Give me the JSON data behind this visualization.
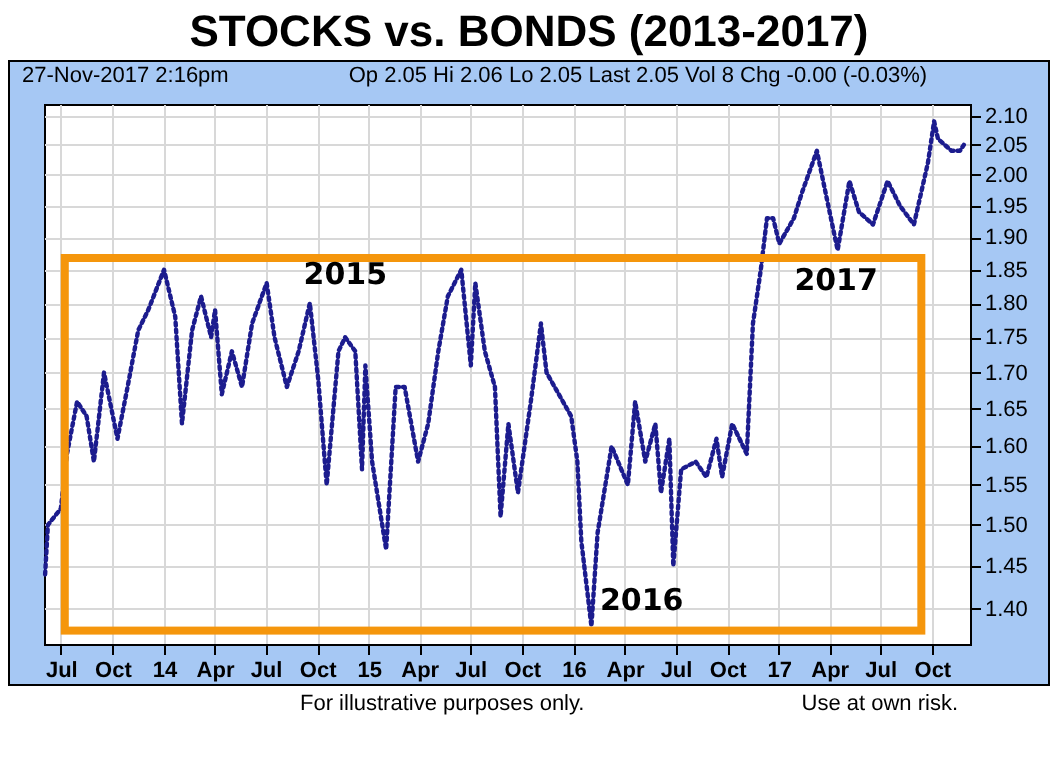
{
  "chart_data": {
    "type": "line",
    "title": "STOCKS vs. BONDS (2013-2017)",
    "subtitle": "27-Nov-2017 2:16pm",
    "annotations": [
      "Op 2.05  Hi 2.06  Lo 2.05  Last 2.05  Vol 8  Chg -0.00 (-0.03%)",
      "2015",
      "2016",
      "2017",
      "For illustrative purposes only.",
      "Use at own risk."
    ],
    "x": [
      "2013-06-03",
      "2013-06-08",
      "2013-07-01",
      "2013-07-12",
      "2013-07-30",
      "2013-08-16",
      "2013-08-29",
      "2013-09-16",
      "2013-10-10",
      "2013-10-28",
      "2013-11-16",
      "2013-12-04",
      "2014-01-01",
      "2014-01-21",
      "2014-02-02",
      "2014-02-20",
      "2014-03-08",
      "2014-03-26",
      "2014-04-02",
      "2014-04-14",
      "2014-05-02",
      "2014-05-20",
      "2014-06-07",
      "2014-07-03",
      "2014-07-17",
      "2014-08-08",
      "2014-08-29",
      "2014-09-18",
      "2014-10-03",
      "2014-10-18",
      "2014-11-08",
      "2014-11-20",
      "2014-12-08",
      "2014-12-20",
      "2014-12-26",
      "2015-01-07",
      "2015-02-01",
      "2015-02-18",
      "2015-03-06",
      "2015-03-30",
      "2015-04-17",
      "2015-05-05",
      "2015-05-22",
      "2015-06-15",
      "2015-07-02",
      "2015-07-10",
      "2015-07-27",
      "2015-08-14",
      "2015-08-24",
      "2015-09-07",
      "2015-09-24",
      "2015-10-17",
      "2015-11-04",
      "2015-11-14",
      "2015-12-28",
      "2016-01-08",
      "2016-01-15",
      "2016-02-02",
      "2016-02-13",
      "2016-03-09",
      "2016-04-07",
      "2016-04-20",
      "2016-05-08",
      "2016-05-26",
      "2016-06-05",
      "2016-06-20",
      "2016-06-27",
      "2016-07-11",
      "2016-08-06",
      "2016-08-25",
      "2016-09-12",
      "2016-09-22",
      "2016-10-10",
      "2016-11-05",
      "2016-11-16",
      "2016-11-30",
      "2016-12-11",
      "2016-12-22",
      "2017-01-02",
      "2017-01-28",
      "2017-02-11",
      "2017-03-10",
      "2017-03-28",
      "2017-04-16",
      "2017-05-07",
      "2017-05-24",
      "2017-06-18",
      "2017-07-14",
      "2017-08-05",
      "2017-08-30",
      "2017-09-24",
      "2017-10-05",
      "2017-10-12",
      "2017-11-05",
      "2017-11-20",
      "2017-11-27"
    ],
    "series": [
      {
        "color": "#1c1c8e",
        "values": [
          1.44,
          1.5,
          1.52,
          1.59,
          1.66,
          1.64,
          1.58,
          1.7,
          1.61,
          1.68,
          1.76,
          1.79,
          1.85,
          1.78,
          1.63,
          1.76,
          1.81,
          1.75,
          1.79,
          1.67,
          1.73,
          1.68,
          1.77,
          1.83,
          1.75,
          1.68,
          1.73,
          1.8,
          1.69,
          1.55,
          1.73,
          1.75,
          1.73,
          1.57,
          1.71,
          1.58,
          1.47,
          1.68,
          1.68,
          1.58,
          1.63,
          1.73,
          1.81,
          1.85,
          1.71,
          1.83,
          1.73,
          1.68,
          1.51,
          1.63,
          1.54,
          1.66,
          1.77,
          1.7,
          1.64,
          1.58,
          1.48,
          1.38,
          1.49,
          1.6,
          1.55,
          1.66,
          1.58,
          1.63,
          1.54,
          1.61,
          1.45,
          1.57,
          1.58,
          1.56,
          1.61,
          1.56,
          1.63,
          1.59,
          1.77,
          1.85,
          1.93,
          1.93,
          1.89,
          1.93,
          1.97,
          2.04,
          1.96,
          1.88,
          1.99,
          1.94,
          1.92,
          1.99,
          1.95,
          1.92,
          2.02,
          2.09,
          2.06,
          2.04,
          2.04,
          2.05
        ]
      }
    ],
    "xlim": [
      "2013-06-01",
      "2017-12-08"
    ],
    "xticks": [
      {
        "value": "2013-07-01",
        "label": "Jul"
      },
      {
        "value": "2013-10-01",
        "label": "Oct"
      },
      {
        "value": "2014-01-01",
        "label": "14"
      },
      {
        "value": "2014-04-01",
        "label": "Apr"
      },
      {
        "value": "2014-07-01",
        "label": "Jul"
      },
      {
        "value": "2014-10-01",
        "label": "Oct"
      },
      {
        "value": "2015-01-01",
        "label": "15"
      },
      {
        "value": "2015-04-01",
        "label": "Apr"
      },
      {
        "value": "2015-07-01",
        "label": "Jul"
      },
      {
        "value": "2015-10-01",
        "label": "Oct"
      },
      {
        "value": "2016-01-01",
        "label": "16"
      },
      {
        "value": "2016-04-01",
        "label": "Apr"
      },
      {
        "value": "2016-07-01",
        "label": "Jul"
      },
      {
        "value": "2016-10-01",
        "label": "Oct"
      },
      {
        "value": "2017-01-01",
        "label": "17"
      },
      {
        "value": "2017-04-01",
        "label": "Apr"
      },
      {
        "value": "2017-07-01",
        "label": "Jul"
      },
      {
        "value": "2017-10-01",
        "label": "Oct"
      }
    ],
    "ylim": [
      1.36,
      2.12
    ],
    "yticks": [
      {
        "value": 1.4,
        "label": "1.40"
      },
      {
        "value": 1.45,
        "label": "1.45"
      },
      {
        "value": 1.5,
        "label": "1.50"
      },
      {
        "value": 1.55,
        "label": "1.55"
      },
      {
        "value": 1.6,
        "label": "1.60"
      },
      {
        "value": 1.65,
        "label": "1.65"
      },
      {
        "value": 1.7,
        "label": "1.70"
      },
      {
        "value": 1.75,
        "label": "1.75"
      },
      {
        "value": 1.8,
        "label": "1.80"
      },
      {
        "value": 1.85,
        "label": "1.85"
      },
      {
        "value": 1.9,
        "label": "1.90"
      },
      {
        "value": 1.95,
        "label": "1.95"
      },
      {
        "value": 2.0,
        "label": "2.00"
      },
      {
        "value": 2.05,
        "label": "2.05"
      },
      {
        "value": 2.1,
        "label": "2.10"
      }
    ],
    "log": "y",
    "grid": true,
    "marker": "none",
    "line_style": "dotted"
  }
}
